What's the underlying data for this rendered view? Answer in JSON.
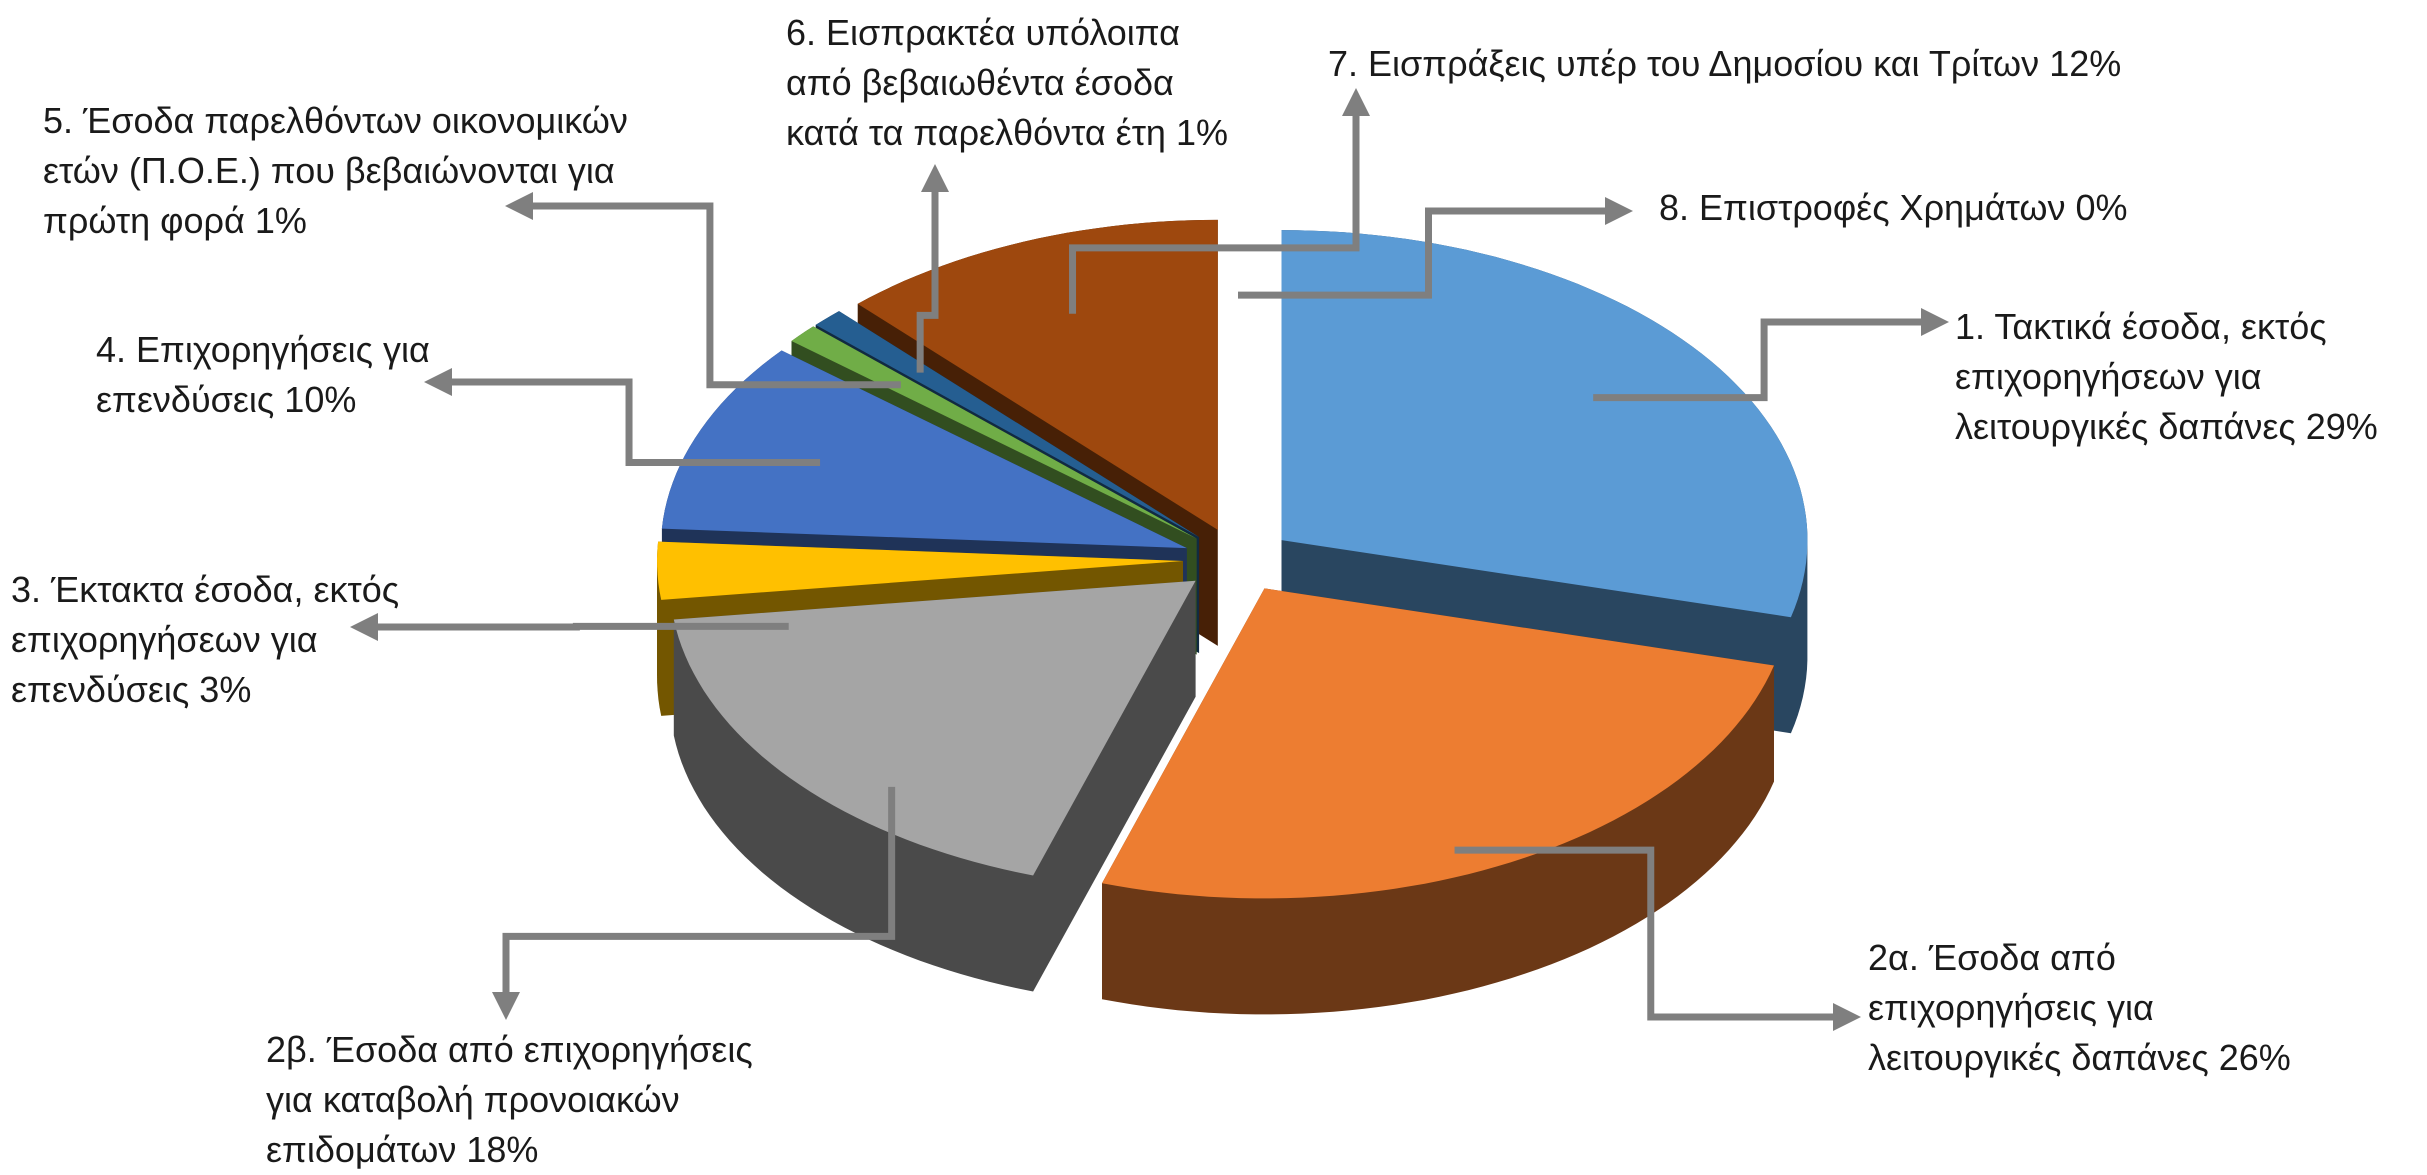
{
  "chart_data": {
    "type": "pie",
    "three_d": true,
    "exploded": true,
    "categories": [
      "1. Τακτικά έσοδα, εκτός επιχορηγήσεων για λειτουργικές δαπάνες",
      "2α. Έσοδα από επιχορηγήσεις για λειτουργικές δαπάνες",
      "2β. Έσοδα από επιχορηγήσεις για καταβολή προνοιακών επιδομάτων",
      "3. Έκτακτα έσοδα, εκτός επιχορηγήσεων για επενδύσεις",
      "4. Επιχορηγήσεις για επενδύσεις",
      "5. Έσοδα παρελθόντων οικονομικών ετών (Π.Ο.Ε.) που βεβαιώνονται για πρώτη φορά",
      "6. Εισπρακτέα υπόλοιπα από βεβαιωθέντα έσοδα κατά τα παρελθόντα έτη",
      "7. Εισπράξεις υπέρ του Δημοσίου και Τρίτων",
      "8. Επιστροφές Χρημάτων"
    ],
    "values": [
      29,
      26,
      18,
      3,
      10,
      1,
      1,
      12,
      0
    ],
    "value_labels": [
      "29%",
      "26%",
      "18%",
      "3%",
      "10%",
      "1%",
      "1%",
      "12%",
      "0%"
    ],
    "colors": [
      "#5b9bd5",
      "#ed7d31",
      "#a5a5a5",
      "#ffc000",
      "#4472c4",
      "#70ad47",
      "#255e91",
      "#9e480e",
      "#636363"
    ]
  }
}
